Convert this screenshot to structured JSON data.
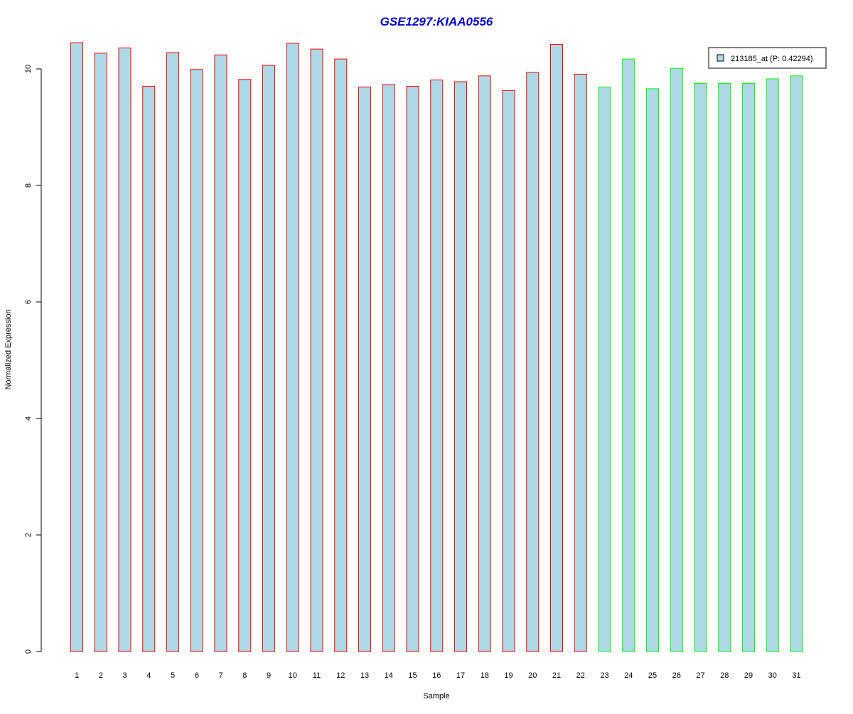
{
  "chart_data": {
    "type": "bar",
    "title": "GSE1297:KIAA0556",
    "xlabel": "Sample",
    "ylabel": "Normalized Expression",
    "ylim": [
      0,
      10.5
    ],
    "yticks": [
      0,
      2,
      4,
      6,
      8,
      10
    ],
    "grid": false,
    "legend_position": "top-right",
    "categories": [
      "1",
      "2",
      "3",
      "4",
      "5",
      "6",
      "7",
      "8",
      "9",
      "10",
      "11",
      "12",
      "13",
      "14",
      "15",
      "16",
      "17",
      "18",
      "19",
      "20",
      "21",
      "22",
      "23",
      "24",
      "25",
      "26",
      "27",
      "28",
      "29",
      "30",
      "31"
    ],
    "values": [
      10.45,
      10.27,
      10.36,
      9.7,
      10.28,
      9.99,
      10.24,
      9.82,
      10.06,
      10.44,
      10.34,
      10.17,
      9.69,
      9.73,
      9.7,
      9.81,
      9.78,
      9.88,
      9.63,
      9.94,
      10.42,
      9.91,
      9.69,
      10.17,
      9.66,
      10.01,
      9.75,
      9.75,
      9.75,
      9.83,
      9.88
    ],
    "groups": [
      "red",
      "red",
      "red",
      "red",
      "red",
      "red",
      "red",
      "red",
      "red",
      "red",
      "red",
      "red",
      "red",
      "red",
      "red",
      "red",
      "red",
      "red",
      "red",
      "red",
      "red",
      "red",
      "green",
      "green",
      "green",
      "green",
      "green",
      "green",
      "green",
      "green",
      "green"
    ],
    "legend": [
      {
        "label": "213185_at (P: 0.42294)",
        "color": "#add8e6"
      }
    ]
  },
  "colors": {
    "title": "#0000cc",
    "bar_fill": "#add8e6",
    "group_border_red": "#ff0000",
    "group_border_green": "#00ff00",
    "axis": "#000000"
  }
}
